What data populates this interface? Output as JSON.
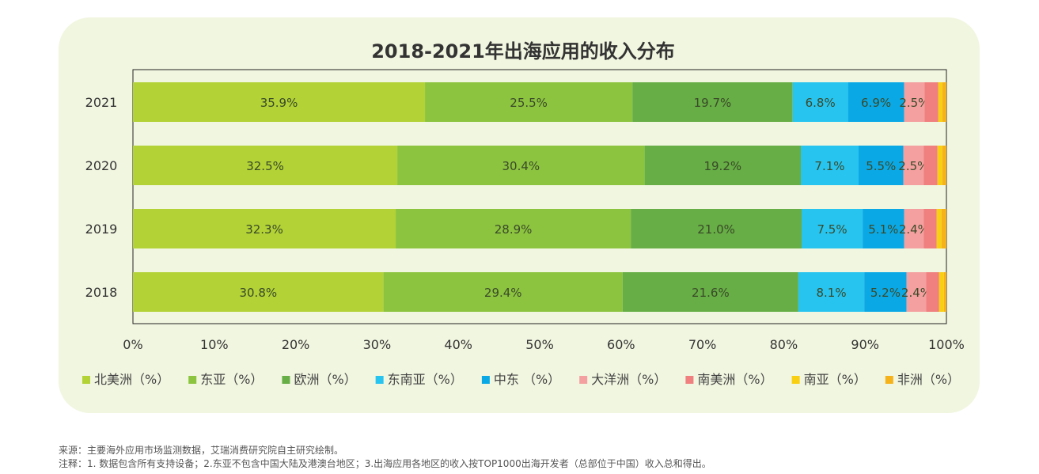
{
  "chart_data": {
    "type": "bar",
    "orientation": "horizontal",
    "stacked": true,
    "title": "2018-2021年出海应用的收入分布",
    "categories": [
      "2021",
      "2020",
      "2019",
      "2018"
    ],
    "xlim": [
      0,
      100
    ],
    "x_ticks": [
      "0%",
      "10%",
      "20%",
      "30%",
      "40%",
      "50%",
      "60%",
      "70%",
      "80%",
      "90%",
      "100%"
    ],
    "legend_position": "bottom",
    "series": [
      {
        "name": "北美洲（%）",
        "color": "#b2d235",
        "values": [
          35.9,
          32.5,
          32.3,
          30.8
        ],
        "labels": [
          "35.9%",
          "32.5%",
          "32.3%",
          "30.8%"
        ]
      },
      {
        "name": "东亚（%）",
        "color": "#8cc43f",
        "values": [
          25.5,
          30.4,
          28.9,
          29.4
        ],
        "labels": [
          "25.5%",
          "30.4%",
          "28.9%",
          "29.4%"
        ]
      },
      {
        "name": "欧洲（%）",
        "color": "#66ae45",
        "values": [
          19.7,
          19.2,
          21.0,
          21.6
        ],
        "labels": [
          "19.7%",
          "19.2%",
          "21.0%",
          "21.6%"
        ]
      },
      {
        "name": "东南亚（%）",
        "color": "#27c4f0",
        "values": [
          6.8,
          7.1,
          7.5,
          8.1
        ],
        "labels": [
          "6.8%",
          "7.1%",
          "7.5%",
          "8.1%"
        ]
      },
      {
        "name": "中东 （%）",
        "color": "#0aa9e6",
        "values": [
          6.9,
          5.5,
          5.1,
          5.2
        ],
        "labels": [
          "6.9%",
          "5.5%",
          "5.1%",
          "5.2%"
        ]
      },
      {
        "name": "大洋洲（%）",
        "color": "#f4a0a0",
        "values": [
          2.5,
          2.5,
          2.4,
          2.4
        ],
        "labels": [
          "2.5%",
          "2.5%",
          "2.4%",
          "2.4%"
        ]
      },
      {
        "name": "南美洲（%）",
        "color": "#f07f7f",
        "values": [
          1.7,
          1.7,
          1.6,
          1.6
        ],
        "labels": [
          "",
          "",
          "",
          ""
        ]
      },
      {
        "name": "南亚（%）",
        "color": "#f8cf12",
        "values": [
          0.5,
          0.6,
          0.6,
          0.6
        ],
        "labels": [
          "",
          "",
          "",
          ""
        ]
      },
      {
        "name": "非洲（%）",
        "color": "#f6b21b",
        "values": [
          0.5,
          0.5,
          0.6,
          0.5
        ],
        "labels": [
          "",
          "",
          "",
          ""
        ]
      }
    ]
  },
  "footnotes": {
    "source": "来源：主要海外应用市场监测数据，艾瑞消费研究院自主研究绘制。",
    "note": "注释：1. 数据包含所有支持设备；2.东亚不包含中国大陆及港澳台地区；3.出海应用各地区的收入按TOP1000出海开发者（总部位于中国）收入总和得出。"
  }
}
